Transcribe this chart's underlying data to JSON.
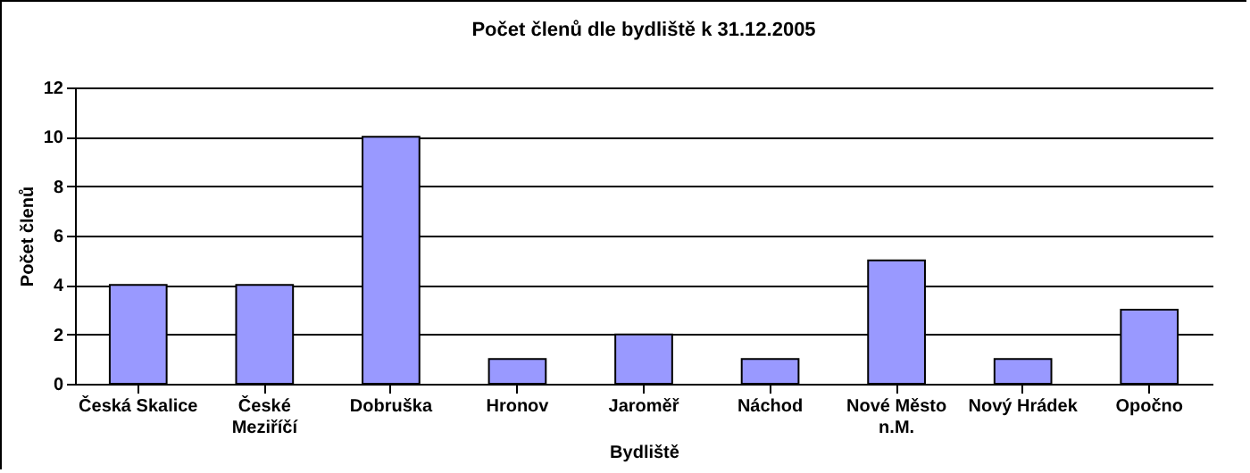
{
  "chart_data": {
    "type": "bar",
    "title": "Počet členů dle bydliště k 31.12.2005",
    "xlabel": "Bydliště",
    "ylabel": "Počet členů",
    "categories": [
      "Česká Skalice",
      "České Meziříčí",
      "Dobruška",
      "Hronov",
      "Jaroměř",
      "Náchod",
      "Nové Město n.M.",
      "Nový Hrádek",
      "Opočno"
    ],
    "values": [
      4,
      4,
      10,
      1,
      2,
      1,
      5,
      1,
      3
    ],
    "color": "#9999ff",
    "ylim": [
      0,
      12
    ],
    "yticks": [
      0,
      2,
      4,
      6,
      8,
      10,
      12
    ],
    "grid": "y"
  }
}
